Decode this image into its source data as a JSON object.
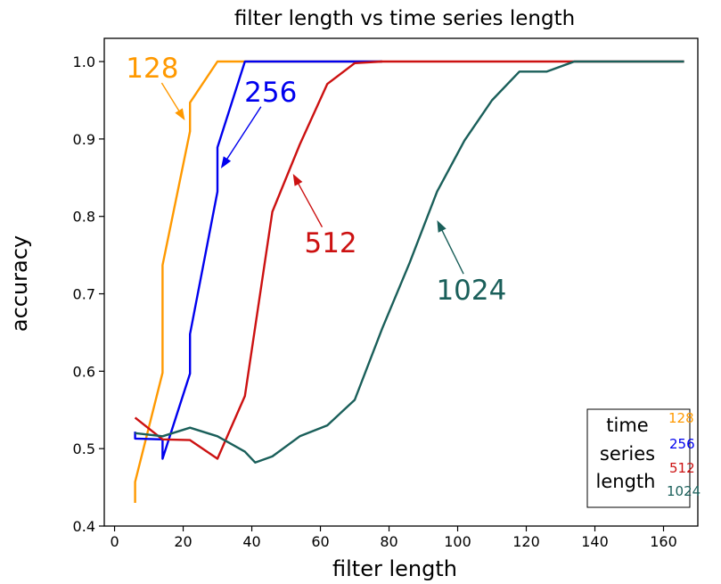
{
  "chart_data": {
    "type": "line",
    "title": "filter length vs time series length",
    "xlabel": "filter length",
    "ylabel": "accuracy",
    "xlim": [
      -3,
      170
    ],
    "ylim": [
      0.4,
      1.03
    ],
    "xticks": [
      "0",
      "20",
      "40",
      "60",
      "80",
      "100",
      "120",
      "140",
      "160"
    ],
    "yticks": [
      "0.4",
      "0.5",
      "0.6",
      "0.7",
      "0.8",
      "0.9",
      "1.0"
    ],
    "grid": false,
    "legend": {
      "title_lines": [
        "time",
        "series",
        "length"
      ],
      "entries": [
        "128",
        "256",
        "512",
        "1024"
      ],
      "placement": "lower-right"
    },
    "series": [
      {
        "name": "128",
        "color": "#ff9900",
        "points": [
          [
            6,
            0.43
          ],
          [
            6,
            0.457
          ],
          [
            14,
            0.598
          ],
          [
            14,
            0.737
          ],
          [
            22,
            0.91
          ],
          [
            22,
            0.947
          ],
          [
            30,
            1.0
          ],
          [
            38,
            1.0
          ],
          [
            46,
            1.0
          ],
          [
            54,
            1.0
          ],
          [
            62,
            1.0
          ],
          [
            70,
            1.0
          ],
          [
            78,
            1.0
          ]
        ]
      },
      {
        "name": "256",
        "color": "#0000ee",
        "points": [
          [
            6,
            0.522
          ],
          [
            6,
            0.513
          ],
          [
            14,
            0.512
          ],
          [
            14,
            0.487
          ],
          [
            22,
            0.597
          ],
          [
            22,
            0.648
          ],
          [
            30,
            0.832
          ],
          [
            30,
            0.889
          ],
          [
            38,
            1.0
          ],
          [
            46,
            1.0
          ],
          [
            54,
            1.0
          ],
          [
            62,
            1.0
          ],
          [
            70,
            1.0
          ],
          [
            78,
            1.0
          ]
        ]
      },
      {
        "name": "512",
        "color": "#cc1111",
        "points": [
          [
            6,
            0.54
          ],
          [
            14,
            0.512
          ],
          [
            22,
            0.511
          ],
          [
            30,
            0.487
          ],
          [
            38,
            0.568
          ],
          [
            46,
            0.806
          ],
          [
            54,
            0.893
          ],
          [
            62,
            0.971
          ],
          [
            70,
            0.998
          ],
          [
            78,
            1.0
          ],
          [
            86,
            1.0
          ],
          [
            94,
            1.0
          ],
          [
            102,
            1.0
          ],
          [
            110,
            1.0
          ],
          [
            118,
            1.0
          ],
          [
            126,
            1.0
          ],
          [
            134,
            1.0
          ],
          [
            142,
            1.0
          ],
          [
            150,
            1.0
          ],
          [
            158,
            1.0
          ],
          [
            166,
            1.0
          ]
        ]
      },
      {
        "name": "1024",
        "color": "#1a5f5a",
        "points": [
          [
            6,
            0.52
          ],
          [
            14,
            0.516
          ],
          [
            22,
            0.527
          ],
          [
            30,
            0.516
          ],
          [
            38,
            0.496
          ],
          [
            41,
            0.482
          ],
          [
            46,
            0.49
          ],
          [
            54,
            0.516
          ],
          [
            62,
            0.53
          ],
          [
            70,
            0.563
          ],
          [
            78,
            0.655
          ],
          [
            86,
            0.74
          ],
          [
            94,
            0.832
          ],
          [
            102,
            0.898
          ],
          [
            110,
            0.95
          ],
          [
            118,
            0.987
          ],
          [
            126,
            0.987
          ],
          [
            134,
            1.0
          ],
          [
            142,
            1.0
          ],
          [
            150,
            1.0
          ],
          [
            158,
            1.0
          ],
          [
            166,
            1.0
          ]
        ]
      }
    ],
    "annotations": [
      {
        "text": "128",
        "color": "#ff9900",
        "text_at": [
          11,
          0.992
        ],
        "arrow_to": [
          20.5,
          0.924
        ]
      },
      {
        "text": "256",
        "color": "#0000ee",
        "text_at": [
          45.5,
          0.961
        ],
        "arrow_to": [
          31,
          0.862
        ]
      },
      {
        "text": "512",
        "color": "#cc1111",
        "text_at": [
          63,
          0.766
        ],
        "arrow_to": [
          52,
          0.855
        ]
      },
      {
        "text": "1024",
        "color": "#1a5f5a",
        "text_at": [
          104,
          0.705
        ],
        "arrow_to": [
          94,
          0.795
        ]
      }
    ]
  }
}
